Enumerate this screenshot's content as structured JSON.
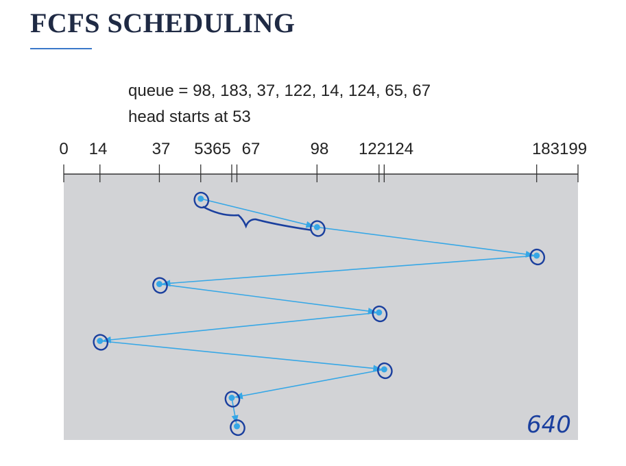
{
  "title": "FCFS SCHEDULING",
  "caption_queue": "queue = 98, 183, 37, 122, 14, 124, 65, 67",
  "caption_head": "head starts at 53",
  "axis": {
    "min": 0,
    "max": 199,
    "tick_labels": [
      "0",
      "14",
      "37",
      "5365",
      "67",
      "98",
      "122124",
      "183199"
    ],
    "tick_values": [
      0,
      14,
      37,
      53,
      65,
      67,
      98,
      122,
      124,
      183,
      199
    ]
  },
  "head_path": [
    53,
    98,
    183,
    37,
    122,
    14,
    124,
    65,
    67
  ],
  "handwritten_total": "640",
  "colors": {
    "path": "#36a7e6",
    "ink": "#1a3f9e",
    "panel": "#d2d3d6",
    "title": "#1f2a44"
  }
}
